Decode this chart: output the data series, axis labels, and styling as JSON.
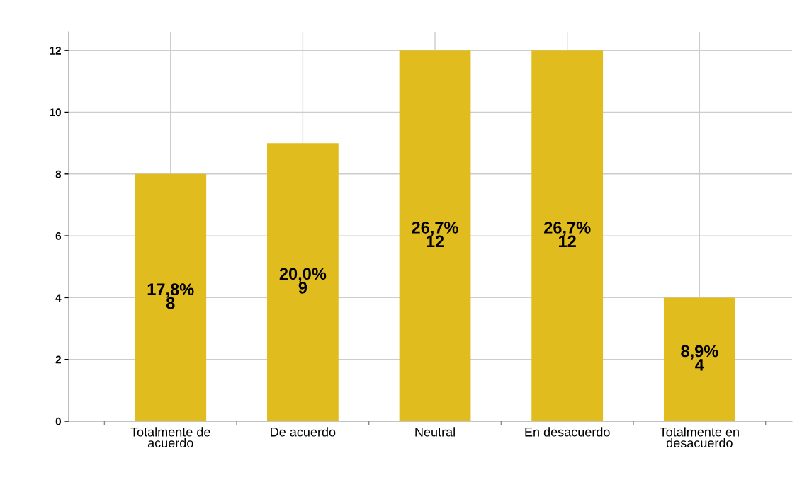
{
  "chart_data": {
    "type": "bar",
    "categories": [
      "Totalmente de\nacuerdo",
      "De acuerdo",
      "Neutral",
      "En desacuerdo",
      "Totalmente en\ndesacuerdo"
    ],
    "values": [
      8,
      9,
      12,
      12,
      4
    ],
    "value_labels": [
      "17,8%\n8",
      "20,0%\n9",
      "26,7%\n12",
      "26,7%\n12",
      "8,9%\n4"
    ],
    "color": "#e1bc1e",
    "ylim": [
      0,
      12.6
    ],
    "yticks": [
      0,
      2,
      4,
      6,
      8,
      10,
      12
    ],
    "grid": true
  }
}
